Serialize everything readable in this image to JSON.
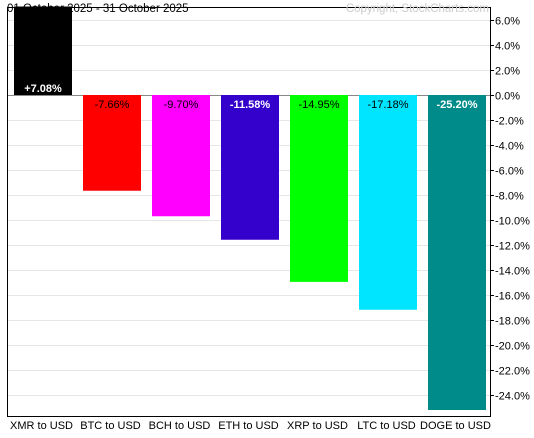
{
  "header": {
    "date_range": "01 October 2025 - 31 October 2025",
    "copyright": "Copyright, StockCharts.com"
  },
  "chart_data": {
    "type": "bar",
    "title": "01 October 2025 - 31 October 2025",
    "categories": [
      "XMR to USD",
      "BTC to USD",
      "BCH to USD",
      "ETH to USD",
      "XRP to USD",
      "LTC to USD",
      "DOGE to USD"
    ],
    "values": [
      7.08,
      -7.66,
      -9.7,
      -11.58,
      -14.95,
      -17.18,
      -25.2
    ],
    "labels": [
      "+7.08%",
      "-7.66%",
      "-9.70%",
      "-11.58%",
      "-14.95%",
      "-17.18%",
      "-25.20%"
    ],
    "colors": [
      "#000000",
      "#ff0000",
      "#ff00ff",
      "#3300cc",
      "#00ff00",
      "#00e5ff",
      "#008b8b"
    ],
    "label_colors": [
      "#ffffff",
      "#000000",
      "#000000",
      "#ffffff",
      "#000000",
      "#000000",
      "#ffffff"
    ],
    "y_ticks": [
      6,
      4,
      2,
      0,
      -2,
      -4,
      -6,
      -8,
      -10,
      -12,
      -14,
      -16,
      -18,
      -20,
      -22,
      -24
    ],
    "y_tick_labels": [
      "6.0%",
      "4.0%",
      "2.0%",
      "0.0%",
      "-2.0%",
      "-4.0%",
      "-6.0%",
      "-8.0%",
      "-10.0%",
      "-12.0%",
      "-14.0%",
      "-16.0%",
      "-18.0%",
      "-20.0%",
      "-22.0%",
      "-24.0%"
    ],
    "ylim": [
      -25.2,
      7.1
    ],
    "grid": true,
    "y_axis_side": "right"
  }
}
